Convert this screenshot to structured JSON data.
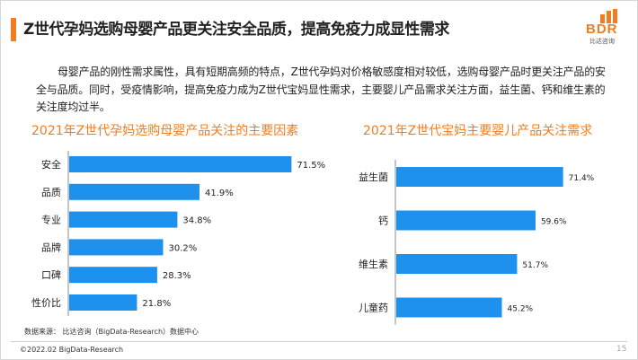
{
  "header": {
    "title": "Z世代孕妈选购母婴产品更关注安全品质，提高免疫力成显性需求",
    "accent_color": "#f07d1f"
  },
  "logo": {
    "text": "BDR",
    "cn_text": "比达咨询"
  },
  "intro_text": "母婴产品的刚性需求属性，具有短期高频的特点，Z世代孕妈对价格敏感度相对较低，选购母婴产品时更关注产品的安全与品质。同时，受疫情影响，提高免疫力成为Z世代宝妈显性需求，主要婴儿产品需求关注方面，益生菌、钙和维生素的关注度均过半。",
  "chart_data": [
    {
      "type": "bar",
      "orientation": "horizontal",
      "title": "2021年Z世代孕妈选购母婴产品关注的主要因素",
      "categories": [
        "安全",
        "品质",
        "专业",
        "品牌",
        "口碑",
        "性价比"
      ],
      "values": [
        71.5,
        41.9,
        34.8,
        30.2,
        28.3,
        21.8
      ],
      "value_labels": [
        "71.5%",
        "41.9%",
        "34.8%",
        "30.2%",
        "28.3%",
        "21.8%"
      ],
      "unit": "%",
      "xlim": [
        0,
        100
      ],
      "grid": false,
      "bar_color": "#1e90ee"
    },
    {
      "type": "bar",
      "orientation": "horizontal",
      "title": "2021年Z世代宝妈主要婴儿产品关注需求",
      "categories": [
        "益生菌",
        "钙",
        "维生素",
        "儿童药"
      ],
      "values": [
        71.4,
        59.6,
        51.7,
        45.2
      ],
      "value_labels": [
        "71.4%",
        "59.6%",
        "51.7%",
        "45.2%"
      ],
      "unit": "%",
      "xlim": [
        0,
        100
      ],
      "grid": false,
      "bar_color": "#1e90ee"
    }
  ],
  "footer": {
    "source": "数据来源：  比达咨询（BigData-Research）数据中心",
    "copyright": "©2022.02 BigData-Research",
    "page_number": "15"
  }
}
